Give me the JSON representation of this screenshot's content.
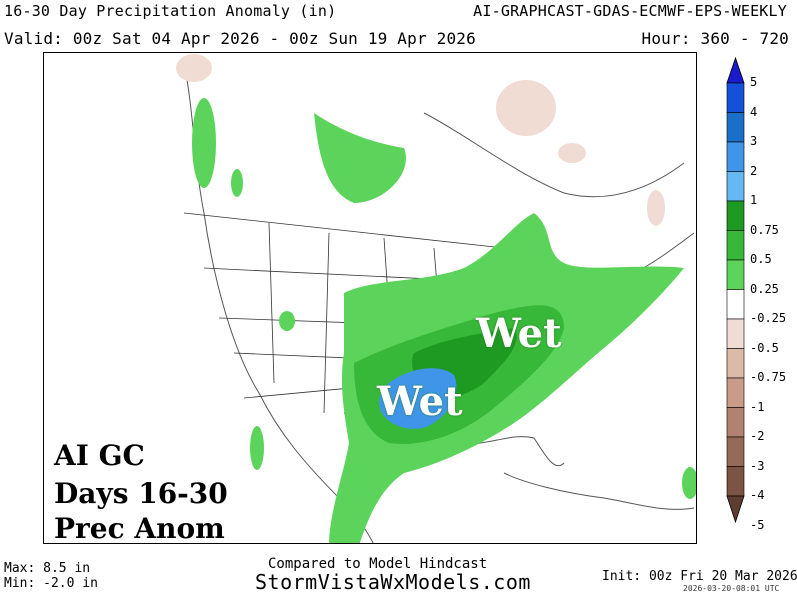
{
  "header": {
    "title": "16-30 Day Precipitation Anomaly (in)",
    "model": "AI-GRAPHCAST-GDAS-ECMWF-EPS-WEEKLY",
    "valid": "Valid: 00z Sat 04 Apr 2026 - 00z Sun 19 Apr 2026",
    "hours": "Hour: 360 - 720"
  },
  "overlay": {
    "line1": "AI GC",
    "line2": "Days 16-30",
    "line3": "Prec Anom",
    "wet_label_1": "Wet",
    "wet_label_2": "Wet"
  },
  "colorbar": {
    "labels": [
      "5",
      "4",
      "3",
      "2",
      "1",
      "0.75",
      "0.5",
      "0.25",
      "-0.25",
      "-0.5",
      "-0.75",
      "-1",
      "-2",
      "-3",
      "-4",
      "-5"
    ],
    "colors": [
      "#1a1acc",
      "#1450d8",
      "#1a70c8",
      "#3f95e8",
      "#66b8f2",
      "#1e9a22",
      "#38b838",
      "#5cd45c",
      "#ffffff",
      "#f0dcd2",
      "#dcbaa8",
      "#c89c88",
      "#b08270",
      "#966a58",
      "#7c5444",
      "#5e3c30"
    ]
  },
  "footer": {
    "max": "Max: 8.5 in",
    "min": "Min: -2.0 in",
    "compared": "Compared to Model Hindcast",
    "site": "StormVistaWxModels.com",
    "init": "Init: 00z Fri 20 Mar 2026",
    "stamp": "2026-03-20-08:01 UTC"
  }
}
